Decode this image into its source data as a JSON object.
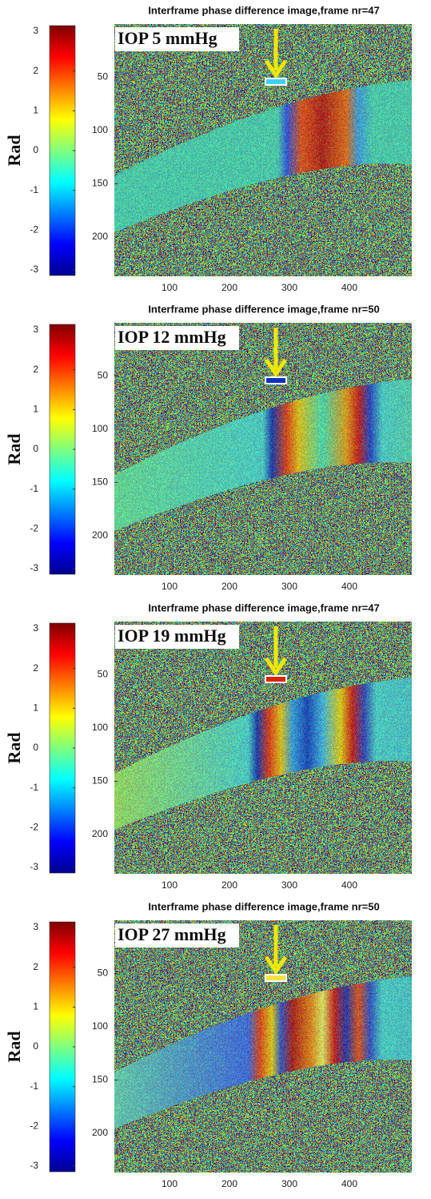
{
  "chart_data": [
    {
      "type": "image",
      "title": "Interframe phase difference image,frame nr=47",
      "annotation": "IOP 5 mmHg",
      "xlim": [
        8,
        504
      ],
      "xticks": [
        100,
        200,
        300,
        400
      ],
      "ylim": [
        0,
        237
      ],
      "yticks": [
        50,
        100,
        150,
        200
      ],
      "colorbar": {
        "label": "Rad",
        "lim": [
          -3.14,
          3.14
        ],
        "ticks": [
          3,
          2,
          1,
          0,
          -1,
          -2,
          -3
        ]
      }
    },
    {
      "type": "image",
      "title": "Interframe phase difference image,frame nr=50",
      "annotation": "IOP 12 mmHg",
      "xlim": [
        8,
        504
      ],
      "xticks": [
        100,
        200,
        300,
        400
      ],
      "ylim": [
        0,
        237
      ],
      "yticks": [
        50,
        100,
        150,
        200
      ],
      "colorbar": {
        "label": "Rad",
        "lim": [
          -3.14,
          3.14
        ],
        "ticks": [
          3,
          2,
          1,
          0,
          -1,
          -2,
          -3
        ]
      }
    },
    {
      "type": "image",
      "title": "Interframe phase difference image,frame nr=47",
      "annotation": "IOP 19 mmHg",
      "xlim": [
        8,
        504
      ],
      "xticks": [
        100,
        200,
        300,
        400
      ],
      "ylim": [
        0,
        237
      ],
      "yticks": [
        50,
        100,
        150,
        200
      ],
      "colorbar": {
        "label": "Rad",
        "lim": [
          -3.14,
          3.14
        ],
        "ticks": [
          3,
          2,
          1,
          0,
          -1,
          -2,
          -3
        ]
      }
    },
    {
      "type": "image",
      "title": "Interframe phase difference image,frame nr=50",
      "annotation": "IOP 27 mmHg",
      "xlim": [
        8,
        504
      ],
      "xticks": [
        100,
        200,
        300,
        400
      ],
      "ylim": [
        0,
        237
      ],
      "yticks": [
        50,
        100,
        150,
        200
      ],
      "colorbar": {
        "label": "Rad",
        "lim": [
          -3.14,
          3.14
        ],
        "ticks": [
          3,
          2,
          1,
          0,
          -1,
          -2,
          -3
        ]
      }
    }
  ]
}
